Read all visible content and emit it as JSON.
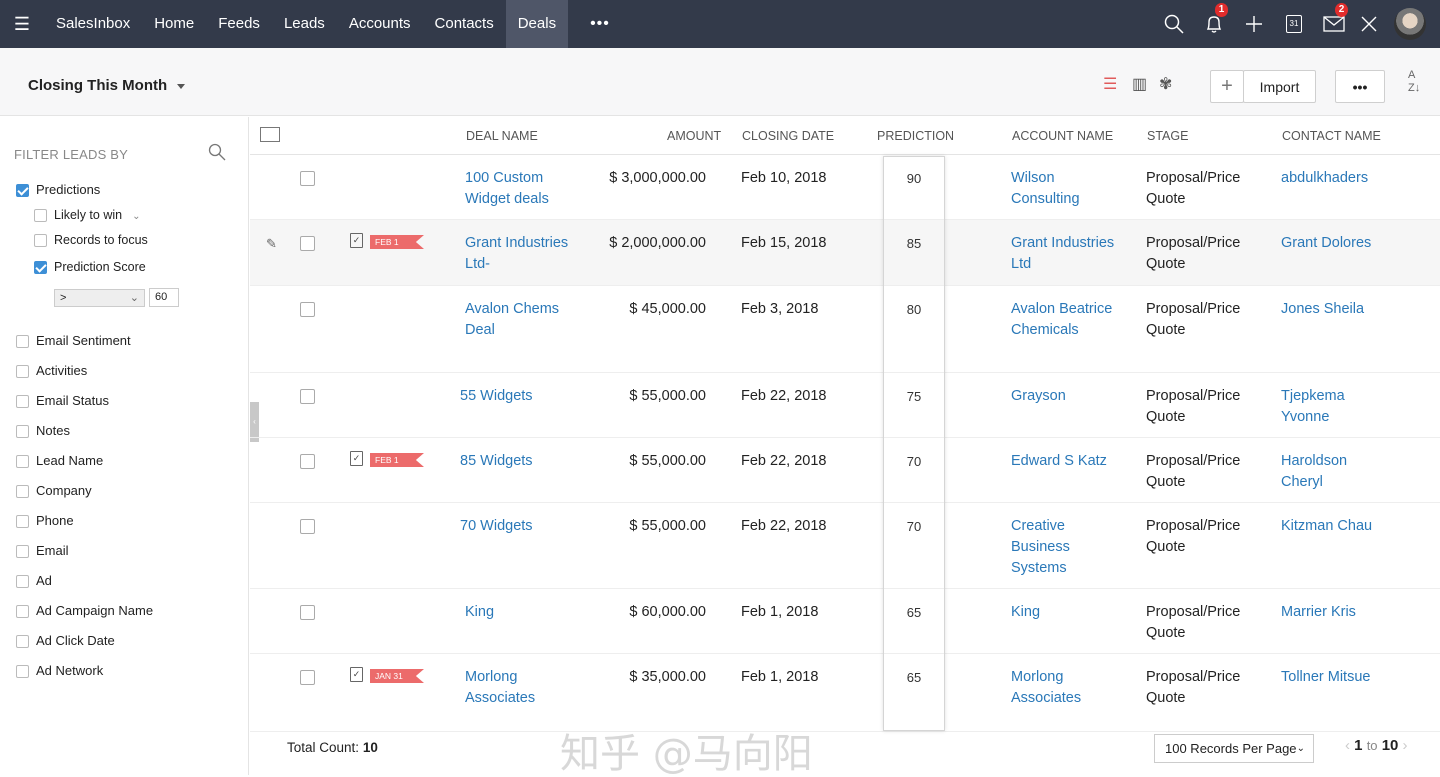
{
  "nav": {
    "brand": "SalesInbox",
    "items": [
      "Home",
      "Feeds",
      "Leads",
      "Accounts",
      "Contacts",
      "Deals"
    ],
    "active": "Deals",
    "more": "•••",
    "notifications_badge": "1",
    "mail_badge": "2",
    "calendar_day": "31"
  },
  "toolbar": {
    "view": "Closing This Month",
    "import": "Import",
    "more": "•••",
    "sort": "A Z"
  },
  "filters": {
    "heading": "FILTER LEADS BY",
    "predictions": "Predictions",
    "likely": "Likely to win",
    "focus": "Records to focus",
    "score": "Prediction Score",
    "operator": ">",
    "score_value": "60",
    "fields": [
      "Email Sentiment",
      "Activities",
      "Email Status",
      "Notes",
      "Lead Name",
      "Company",
      "Phone",
      "Email",
      "Ad",
      "Ad Campaign Name",
      "Ad Click Date",
      "Ad Network"
    ]
  },
  "table": {
    "headers": {
      "deal": "DEAL NAME",
      "amount": "AMOUNT",
      "closing": "CLOSING DATE",
      "prediction": "PREDICTION",
      "account": "ACCOUNT NAME",
      "stage": "STAGE",
      "contact": "CONTACT NAME"
    },
    "rows": [
      {
        "deal": "100 Custom Widget deals",
        "amount": "$ 3,000,000.00",
        "closing": "Feb 10, 2018",
        "prediction": "90",
        "account": "Wilson Consulting",
        "stage": "Proposal/Price Quote",
        "contact": "abdulkhaders",
        "flag": ""
      },
      {
        "deal": "Grant Industries Ltd-",
        "amount": "$ 2,000,000.00",
        "closing": "Feb 15, 2018",
        "prediction": "85",
        "account": "Grant Industries Ltd",
        "stage": "Proposal/Price Quote",
        "contact": "Grant Dolores",
        "flag": "FEB 1"
      },
      {
        "deal": "Avalon Chems Deal",
        "amount": "$ 45,000.00",
        "closing": "Feb 3, 2018",
        "prediction": "80",
        "account": "Avalon Beatrice Chemicals",
        "stage": "Proposal/Price Quote",
        "contact": "Jones Sheila",
        "flag": ""
      },
      {
        "deal": "55  Widgets",
        "amount": "$ 55,000.00",
        "closing": "Feb 22, 2018",
        "prediction": "75",
        "account": "Grayson",
        "stage": "Proposal/Price Quote",
        "contact": "Tjepkema Yvonne",
        "flag": ""
      },
      {
        "deal": "85  Widgets",
        "amount": "$ 55,000.00",
        "closing": "Feb 22, 2018",
        "prediction": "70",
        "account": "Edward S Katz",
        "stage": "Proposal/Price Quote",
        "contact": "Haroldson Cheryl",
        "flag": "FEB 1"
      },
      {
        "deal": "70  Widgets",
        "amount": "$ 55,000.00",
        "closing": "Feb 22, 2018",
        "prediction": "70",
        "account": "Creative Business Systems",
        "stage": "Proposal/Price Quote",
        "contact": "Kitzman Chau",
        "flag": ""
      },
      {
        "deal": "King",
        "amount": "$ 60,000.00",
        "closing": "Feb 1, 2018",
        "prediction": "65",
        "account": "King",
        "stage": "Proposal/Price Quote",
        "contact": "Marrier Kris",
        "flag": ""
      },
      {
        "deal": "Morlong Associates",
        "amount": "$ 35,000.00",
        "closing": "Feb 1, 2018",
        "prediction": "65",
        "account": "Morlong Associates",
        "stage": "Proposal/Price Quote",
        "contact": "Tollner Mitsue",
        "flag": "JAN 31"
      }
    ]
  },
  "footer": {
    "total_label": "Total Count:",
    "total": "10",
    "per_page": "100 Records Per Page",
    "page_from": "1",
    "page_to_label": "to",
    "page_to": "10"
  },
  "watermark": "知乎 @马向阳"
}
